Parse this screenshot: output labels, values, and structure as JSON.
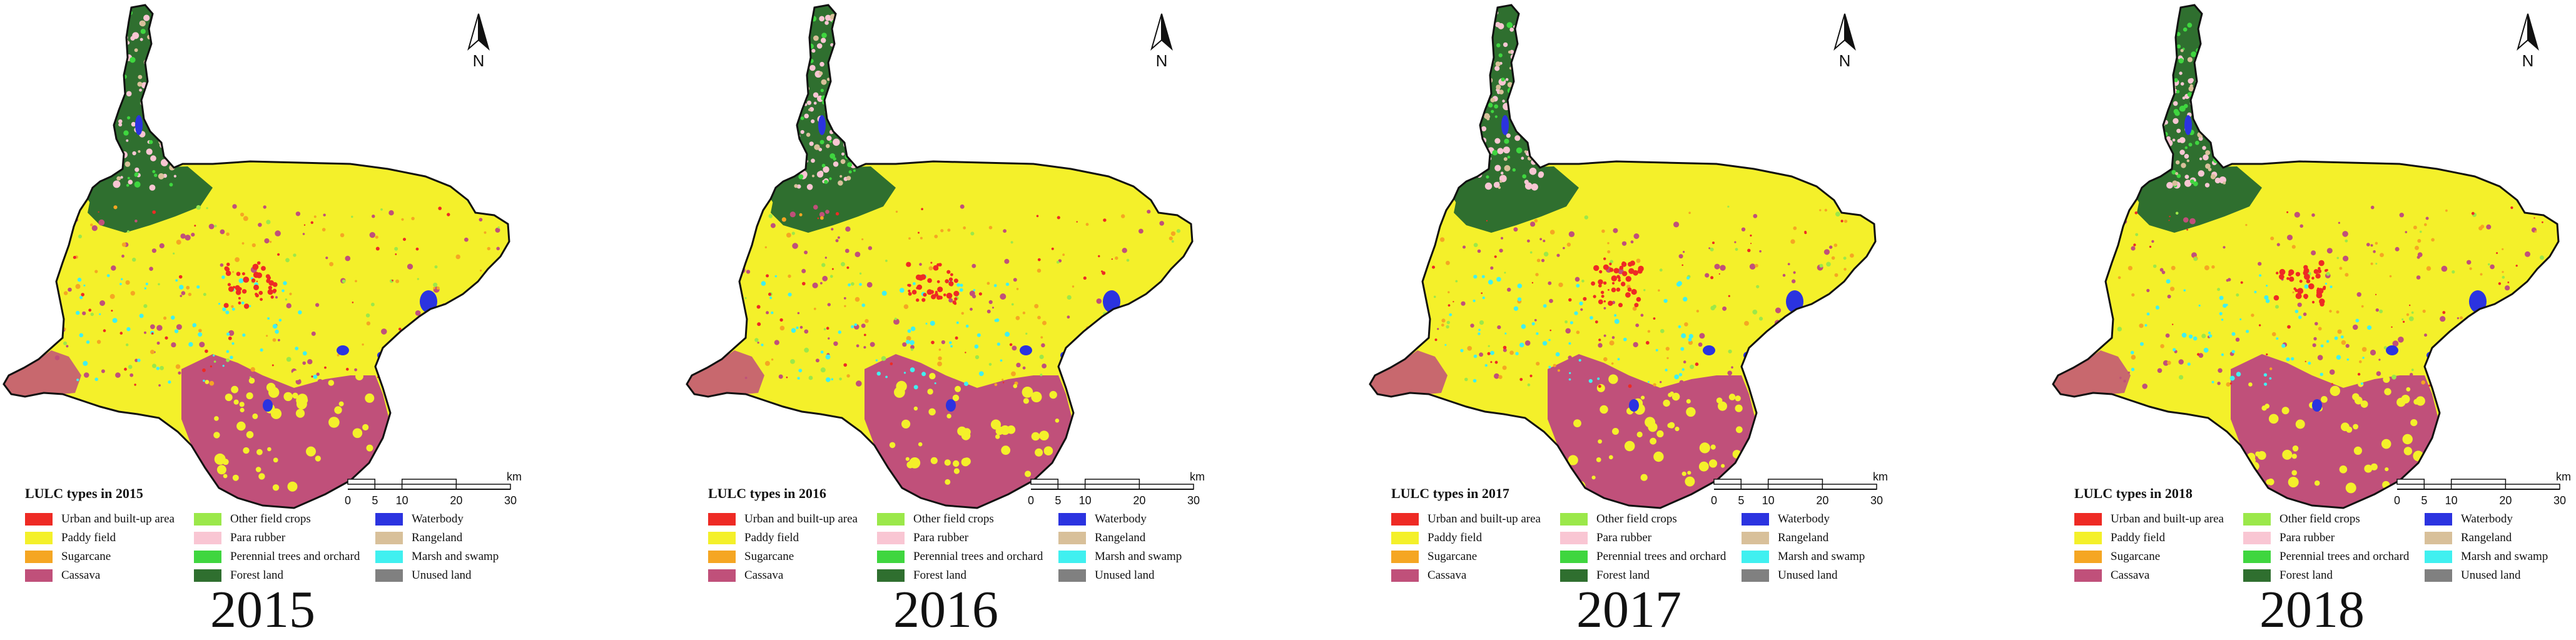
{
  "north_label": "N",
  "scale": {
    "unit": "km",
    "ticks": [
      "0",
      "5",
      "10",
      "20",
      "30"
    ],
    "tick_values": [
      0,
      5,
      10,
      20,
      30
    ]
  },
  "legend_items": [
    {
      "label": "Urban and built-up area",
      "color": "#ee2a24"
    },
    {
      "label": "Paddy field",
      "color": "#f4f02a"
    },
    {
      "label": "Sugarcane",
      "color": "#f5a623"
    },
    {
      "label": "Cassava",
      "color": "#c0507a"
    },
    {
      "label": "Other field crops",
      "color": "#9be84a"
    },
    {
      "label": "Para rubber",
      "color": "#f9c6d3"
    },
    {
      "label": "Perennial trees and orchard",
      "color": "#3fd63f"
    },
    {
      "label": "Forest land",
      "color": "#2f6f2f"
    },
    {
      "label": "Waterbody",
      "color": "#2b33e0"
    },
    {
      "label": "Rangeland",
      "color": "#d8c09a"
    },
    {
      "label": "Marsh and swamp",
      "color": "#40f0f0"
    },
    {
      "label": "Unused land",
      "color": "#808080"
    }
  ],
  "panels": [
    {
      "legend_title": "LULC types in 2015",
      "year": "2015"
    },
    {
      "legend_title": "LULC types in 2016",
      "year": "2016"
    },
    {
      "legend_title": "LULC types in 2017",
      "year": "2017"
    },
    {
      "legend_title": "LULC types in 2018",
      "year": "2018"
    }
  ]
}
